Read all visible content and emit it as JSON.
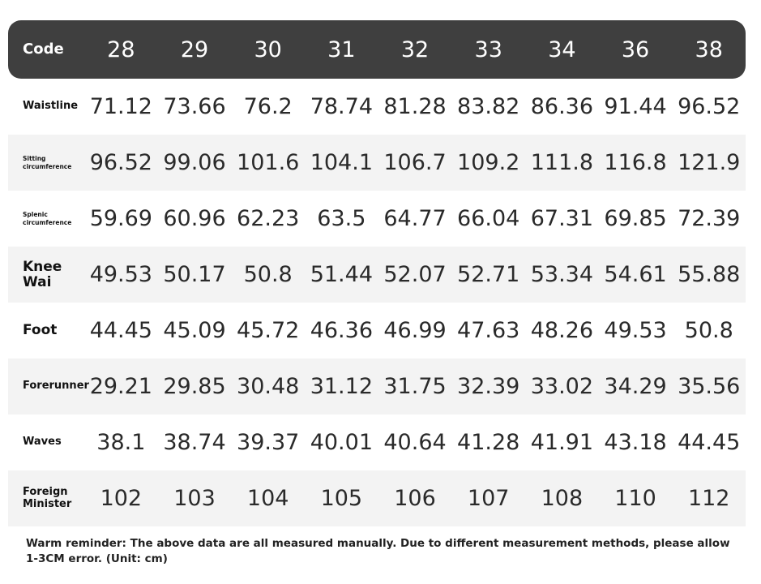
{
  "table": {
    "header": {
      "label": "Code",
      "sizes": [
        "28",
        "29",
        "30",
        "31",
        "32",
        "33",
        "34",
        "36",
        "38"
      ]
    },
    "rows": [
      {
        "label": "Waistline",
        "values": [
          "71.12",
          "73.66",
          "76.2",
          "78.74",
          "81.28",
          "83.82",
          "86.36",
          "91.44",
          "96.52"
        ]
      },
      {
        "label": "Sitting circumference",
        "values": [
          "96.52",
          "99.06",
          "101.6",
          "104.1",
          "106.7",
          "109.2",
          "111.8",
          "116.8",
          "121.9"
        ]
      },
      {
        "label": "Splenic circumference",
        "values": [
          "59.69",
          "60.96",
          "62.23",
          "63.5",
          "64.77",
          "66.04",
          "67.31",
          "69.85",
          "72.39"
        ]
      },
      {
        "label": "Knee Wai",
        "values": [
          "49.53",
          "50.17",
          "50.8",
          "51.44",
          "52.07",
          "52.71",
          "53.34",
          "54.61",
          "55.88"
        ]
      },
      {
        "label": "Foot",
        "values": [
          "44.45",
          "45.09",
          "45.72",
          "46.36",
          "46.99",
          "47.63",
          "48.26",
          "49.53",
          "50.8"
        ]
      },
      {
        "label": "Forerunner",
        "values": [
          "29.21",
          "29.85",
          "30.48",
          "31.12",
          "31.75",
          "32.39",
          "33.02",
          "34.29",
          "35.56"
        ]
      },
      {
        "label": "Waves",
        "values": [
          "38.1",
          "38.74",
          "39.37",
          "40.01",
          "40.64",
          "41.28",
          "41.91",
          "43.18",
          "44.45"
        ]
      },
      {
        "label": "Foreign Minister",
        "values": [
          "102",
          "103",
          "104",
          "105",
          "106",
          "107",
          "108",
          "110",
          "112"
        ]
      }
    ]
  },
  "reminder": "Warm reminder: The above data are all measured manually. Due to different measurement methods, please allow 1-3CM error. (Unit: cm)"
}
